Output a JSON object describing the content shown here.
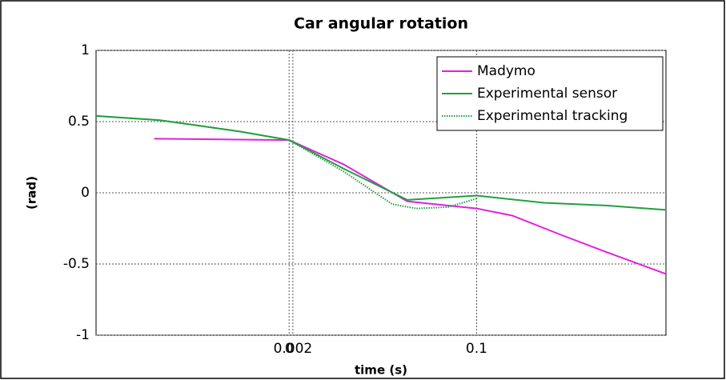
{
  "chart_data": {
    "type": "line",
    "title": "Car angular rotation",
    "xlabel": "time (s)",
    "ylabel": "(rad)",
    "xlim": [
      -0.103,
      0.201
    ],
    "ylim": [
      -1,
      1
    ],
    "xticks": [
      0,
      0.002,
      0.1
    ],
    "yticks": [
      -1,
      -0.5,
      0,
      0.5,
      1
    ],
    "grid": true,
    "legend": "upper right",
    "series": [
      {
        "name": "Madymo",
        "color": "#e020e0",
        "style": "solid",
        "x": [
          -0.072,
          0,
          0.029,
          0.063,
          0.1,
          0.119,
          0.144,
          0.17,
          0.201
        ],
        "values": [
          0.38,
          0.37,
          0.2,
          -0.06,
          -0.11,
          -0.16,
          -0.29,
          -0.42,
          -0.57
        ]
      },
      {
        "name": "Experimental sensor",
        "color": "#20a040",
        "style": "solid",
        "x": [
          -0.103,
          -0.069,
          -0.026,
          0,
          0.029,
          0.063,
          0.1,
          0.136,
          0.17,
          0.201
        ],
        "values": [
          0.54,
          0.51,
          0.43,
          0.37,
          0.17,
          -0.05,
          -0.02,
          -0.07,
          -0.09,
          -0.12
        ]
      },
      {
        "name": "Experimental tracking",
        "color": "#20a040",
        "style": "dotted",
        "x": [
          -0.103,
          -0.069,
          -0.026,
          0,
          0.029,
          0.055,
          0.068,
          0.085,
          0.1
        ],
        "values": [
          0.54,
          0.51,
          0.43,
          0.37,
          0.15,
          -0.08,
          -0.11,
          -0.1,
          -0.04
        ]
      }
    ]
  }
}
